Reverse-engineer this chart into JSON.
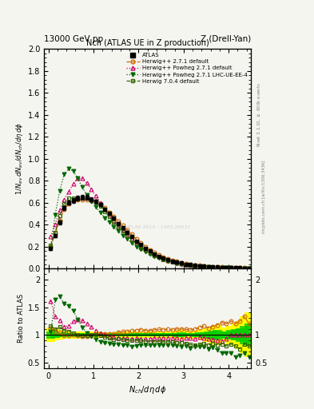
{
  "title_left": "13000 GeV pp",
  "title_right": "Z (Drell-Yan)",
  "plot_title": "Nch (ATLAS UE in Z production)",
  "xlabel": "$N_{ch}/d\\eta\\,d\\phi$",
  "ylabel_main": "$1/N_{ev}\\,dN_{ev}/dN_{ch}/d\\eta\\,d\\phi$",
  "ylabel_ratio": "Ratio to ATLAS",
  "right_label_top": "Rivet 3.1.10, $\\geq$ 600k events",
  "right_label_bot": "mcplots.cern.ch [arXiv:1306.3436]",
  "watermark": "ATLAS 2015 - 1505.26531",
  "atlas_x": [
    0.05,
    0.15,
    0.25,
    0.35,
    0.45,
    0.55,
    0.65,
    0.75,
    0.85,
    0.95,
    1.05,
    1.15,
    1.25,
    1.35,
    1.45,
    1.55,
    1.65,
    1.75,
    1.85,
    1.95,
    2.05,
    2.15,
    2.25,
    2.35,
    2.45,
    2.55,
    2.65,
    2.75,
    2.85,
    2.95,
    3.05,
    3.15,
    3.25,
    3.35,
    3.45,
    3.55,
    3.65,
    3.75,
    3.85,
    3.95,
    4.05,
    4.15,
    4.25,
    4.35,
    4.45
  ],
  "atlas_y": [
    0.18,
    0.3,
    0.42,
    0.55,
    0.6,
    0.62,
    0.64,
    0.65,
    0.65,
    0.63,
    0.61,
    0.58,
    0.54,
    0.5,
    0.46,
    0.41,
    0.37,
    0.33,
    0.29,
    0.25,
    0.215,
    0.185,
    0.158,
    0.133,
    0.112,
    0.095,
    0.08,
    0.068,
    0.057,
    0.048,
    0.04,
    0.034,
    0.028,
    0.023,
    0.019,
    0.016,
    0.013,
    0.011,
    0.009,
    0.0075,
    0.006,
    0.005,
    0.004,
    0.003,
    0.0025
  ],
  "atlas_yerr": [
    0.012,
    0.015,
    0.018,
    0.02,
    0.02,
    0.02,
    0.02,
    0.02,
    0.02,
    0.018,
    0.017,
    0.015,
    0.014,
    0.013,
    0.012,
    0.011,
    0.01,
    0.009,
    0.008,
    0.007,
    0.006,
    0.005,
    0.004,
    0.004,
    0.003,
    0.003,
    0.002,
    0.002,
    0.002,
    0.002,
    0.001,
    0.001,
    0.001,
    0.001,
    0.001,
    0.001,
    0.001,
    0.001,
    0.0005,
    0.0005,
    0.0005,
    0.0005,
    0.0005,
    0.0005,
    0.0005
  ],
  "hw271_x": [
    0.05,
    0.15,
    0.25,
    0.35,
    0.45,
    0.55,
    0.65,
    0.75,
    0.85,
    0.95,
    1.05,
    1.15,
    1.25,
    1.35,
    1.45,
    1.55,
    1.65,
    1.75,
    1.85,
    1.95,
    2.05,
    2.15,
    2.25,
    2.35,
    2.45,
    2.55,
    2.65,
    2.75,
    2.85,
    2.95,
    3.05,
    3.15,
    3.25,
    3.35,
    3.45,
    3.55,
    3.65,
    3.75,
    3.85,
    3.95,
    4.05,
    4.15,
    4.25,
    4.35,
    4.45
  ],
  "hw271_y": [
    0.2,
    0.32,
    0.44,
    0.54,
    0.59,
    0.62,
    0.63,
    0.63,
    0.63,
    0.62,
    0.61,
    0.59,
    0.55,
    0.51,
    0.47,
    0.43,
    0.39,
    0.35,
    0.31,
    0.27,
    0.235,
    0.2,
    0.17,
    0.145,
    0.123,
    0.104,
    0.088,
    0.074,
    0.063,
    0.053,
    0.044,
    0.037,
    0.031,
    0.026,
    0.022,
    0.018,
    0.015,
    0.013,
    0.011,
    0.009,
    0.0075,
    0.006,
    0.005,
    0.004,
    0.003
  ],
  "hwpow271_x": [
    0.05,
    0.15,
    0.25,
    0.35,
    0.45,
    0.55,
    0.65,
    0.75,
    0.85,
    0.95,
    1.05,
    1.15,
    1.25,
    1.35,
    1.45,
    1.55,
    1.65,
    1.75,
    1.85,
    1.95,
    2.05,
    2.15,
    2.25,
    2.35,
    2.45,
    2.55,
    2.65,
    2.75,
    2.85,
    2.95,
    3.05,
    3.15,
    3.25,
    3.35,
    3.45,
    3.55,
    3.65,
    3.75,
    3.85,
    3.95,
    4.05,
    4.15,
    4.25,
    4.35,
    4.45
  ],
  "hwpow271_y": [
    0.29,
    0.4,
    0.53,
    0.63,
    0.7,
    0.77,
    0.82,
    0.82,
    0.78,
    0.72,
    0.66,
    0.6,
    0.54,
    0.49,
    0.44,
    0.39,
    0.35,
    0.31,
    0.27,
    0.235,
    0.2,
    0.172,
    0.147,
    0.125,
    0.106,
    0.09,
    0.076,
    0.064,
    0.054,
    0.045,
    0.038,
    0.032,
    0.026,
    0.022,
    0.018,
    0.015,
    0.012,
    0.01,
    0.008,
    0.007,
    0.006,
    0.005,
    0.004,
    0.003,
    0.0025
  ],
  "hwpow271lhc_x": [
    0.05,
    0.15,
    0.25,
    0.35,
    0.45,
    0.55,
    0.65,
    0.75,
    0.85,
    0.95,
    1.05,
    1.15,
    1.25,
    1.35,
    1.45,
    1.55,
    1.65,
    1.75,
    1.85,
    1.95,
    2.05,
    2.15,
    2.25,
    2.35,
    2.45,
    2.55,
    2.65,
    2.75,
    2.85,
    2.95,
    3.05,
    3.15,
    3.25,
    3.35,
    3.45,
    3.55,
    3.65,
    3.75,
    3.85,
    3.95,
    4.05,
    4.15,
    4.25,
    4.35,
    4.45
  ],
  "hwpow271lhc_y": [
    0.19,
    0.49,
    0.71,
    0.86,
    0.91,
    0.89,
    0.82,
    0.74,
    0.67,
    0.61,
    0.56,
    0.51,
    0.46,
    0.42,
    0.38,
    0.34,
    0.3,
    0.27,
    0.23,
    0.2,
    0.175,
    0.15,
    0.128,
    0.108,
    0.092,
    0.077,
    0.065,
    0.055,
    0.046,
    0.038,
    0.032,
    0.026,
    0.022,
    0.018,
    0.015,
    0.012,
    0.01,
    0.008,
    0.006,
    0.005,
    0.004,
    0.003,
    0.0025,
    0.002,
    0.0015
  ],
  "hw704_x": [
    0.05,
    0.15,
    0.25,
    0.35,
    0.45,
    0.55,
    0.65,
    0.75,
    0.85,
    0.95,
    1.05,
    1.15,
    1.25,
    1.35,
    1.45,
    1.55,
    1.65,
    1.75,
    1.85,
    1.95,
    2.05,
    2.15,
    2.25,
    2.35,
    2.45,
    2.55,
    2.65,
    2.75,
    2.85,
    2.95,
    3.05,
    3.15,
    3.25,
    3.35,
    3.45,
    3.55,
    3.65,
    3.75,
    3.85,
    3.95,
    4.05,
    4.15,
    4.25,
    4.35,
    4.45
  ],
  "hw704_y": [
    0.21,
    0.33,
    0.48,
    0.59,
    0.64,
    0.64,
    0.64,
    0.64,
    0.64,
    0.63,
    0.61,
    0.57,
    0.52,
    0.47,
    0.42,
    0.38,
    0.34,
    0.3,
    0.26,
    0.225,
    0.193,
    0.164,
    0.139,
    0.117,
    0.099,
    0.083,
    0.07,
    0.059,
    0.049,
    0.041,
    0.034,
    0.028,
    0.023,
    0.019,
    0.016,
    0.013,
    0.011,
    0.009,
    0.0075,
    0.006,
    0.005,
    0.004,
    0.003,
    0.0025,
    0.002
  ],
  "color_atlas": "#000000",
  "color_hw271": "#cc6600",
  "color_hwpow271": "#cc0066",
  "color_hwpow271lhc": "#006600",
  "color_hw704": "#336600",
  "band_yellow": "#ffff00",
  "band_green": "#00cc00",
  "xlim": [
    -0.1,
    4.5
  ],
  "ylim_main": [
    0.0,
    2.0
  ],
  "ylim_ratio": [
    0.4,
    2.2
  ],
  "bg_color": "#f5f5f0"
}
